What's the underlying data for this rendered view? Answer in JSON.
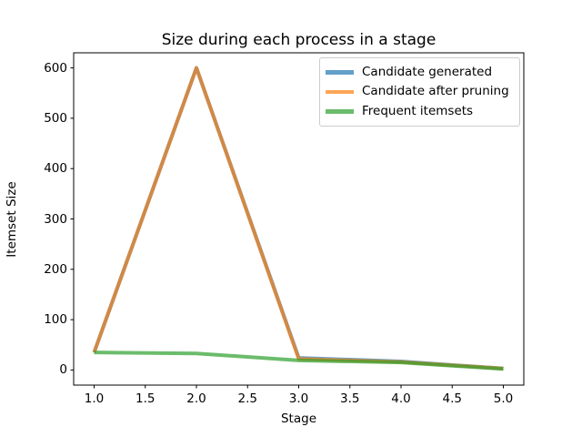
{
  "chart_data": {
    "type": "line",
    "title": "Size during each process in a stage",
    "xlabel": "Stage",
    "ylabel": "Itemset Size",
    "x": [
      1,
      2,
      3,
      4,
      5
    ],
    "series": [
      {
        "name": "Candidate generated",
        "color": "#1f77b4",
        "values": [
          35,
          600,
          24,
          17,
          3
        ]
      },
      {
        "name": "Candidate after pruning",
        "color": "#ff7f0e",
        "values": [
          35,
          600,
          22,
          16,
          3
        ]
      },
      {
        "name": "Frequent itemsets",
        "color": "#2ca02c",
        "values": [
          35,
          33,
          19,
          15,
          2
        ]
      }
    ],
    "line_width": 4,
    "line_opacity": 0.7,
    "x_ticks": [
      1.0,
      1.5,
      2.0,
      2.5,
      3.0,
      3.5,
      4.0,
      4.5,
      5.0
    ],
    "x_tick_labels": [
      "1.0",
      "1.5",
      "2.0",
      "2.5",
      "3.0",
      "3.5",
      "4.0",
      "4.5",
      "5.0"
    ],
    "y_ticks": [
      0,
      100,
      200,
      300,
      400,
      500,
      600
    ],
    "y_tick_labels": [
      "0",
      "100",
      "200",
      "300",
      "400",
      "500",
      "600"
    ],
    "xlim": [
      0.8,
      5.2
    ],
    "ylim": [
      -30,
      630
    ],
    "grid": false,
    "legend_position": "upper right",
    "axis_color": "#000000",
    "background_color": "#ffffff"
  }
}
